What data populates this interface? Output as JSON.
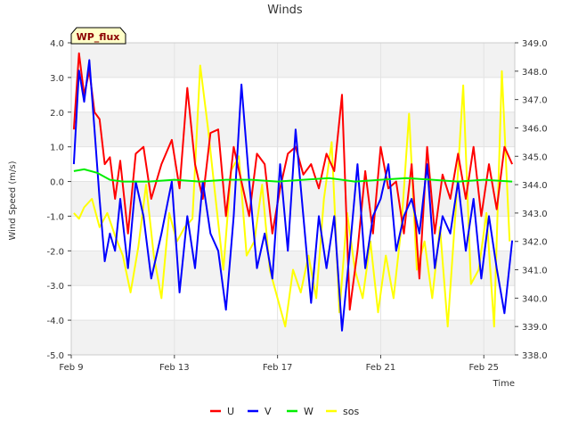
{
  "chart_data": {
    "type": "line",
    "title": "Winds",
    "badge": "WP_flux",
    "xlabel": "Time",
    "ylabel": "Wind Speed (m/s)",
    "ylim": [
      -5.0,
      4.0
    ],
    "y2lim": [
      338.0,
      349.0
    ],
    "xlim_days": [
      9,
      26.2
    ],
    "y_ticks": [
      -5.0,
      -4.0,
      -3.0,
      -2.0,
      -1.0,
      0.0,
      1.0,
      2.0,
      3.0,
      4.0
    ],
    "y_tick_labels": [
      "-5.0",
      "-4.0",
      "-3.0",
      "-2.0",
      "-1.0",
      "0.0",
      "1.0",
      "2.0",
      "3.0",
      "4.0"
    ],
    "y2_ticks": [
      338.0,
      339.0,
      340.0,
      341.0,
      342.0,
      343.0,
      344.0,
      345.0,
      346.0,
      347.0,
      348.0,
      349.0
    ],
    "y2_tick_labels": [
      "338.0",
      "339.0",
      "340.0",
      "341.0",
      "342.0",
      "343.0",
      "344.0",
      "345.0",
      "346.0",
      "347.0",
      "348.0",
      "349.0"
    ],
    "x_ticks": [
      9,
      13,
      17,
      21,
      25
    ],
    "x_tick_labels": [
      "Feb 9",
      "Feb 13",
      "Feb 17",
      "Feb 21",
      "Feb 25"
    ],
    "bands": [
      [
        3.0,
        4.0
      ],
      [
        1.0,
        2.0
      ],
      [
        -1.0,
        0.0
      ],
      [
        -3.0,
        -2.0
      ],
      [
        -5.0,
        -4.0
      ]
    ],
    "legend_position": "bottom-center",
    "series": [
      {
        "name": "U",
        "color": "#ff0000",
        "axis": "left",
        "x": [
          9.1,
          9.3,
          9.5,
          9.7,
          9.9,
          10.1,
          10.3,
          10.5,
          10.7,
          10.9,
          11.2,
          11.5,
          11.8,
          12.1,
          12.5,
          12.9,
          13.2,
          13.5,
          13.8,
          14.1,
          14.4,
          14.7,
          15.0,
          15.3,
          15.6,
          15.9,
          16.2,
          16.5,
          16.8,
          17.1,
          17.4,
          17.7,
          18.0,
          18.3,
          18.6,
          18.9,
          19.2,
          19.5,
          19.8,
          20.1,
          20.4,
          20.7,
          21.0,
          21.3,
          21.6,
          21.9,
          22.2,
          22.5,
          22.8,
          23.1,
          23.4,
          23.7,
          24.0,
          24.3,
          24.6,
          24.9,
          25.2,
          25.5,
          25.8,
          26.1
        ],
        "values": [
          1.5,
          3.7,
          2.5,
          3.2,
          2.0,
          1.8,
          0.5,
          0.7,
          -0.5,
          0.6,
          -1.5,
          0.8,
          1.0,
          -0.5,
          0.5,
          1.2,
          -0.2,
          2.7,
          0.5,
          -0.5,
          1.4,
          1.5,
          -1.0,
          1.0,
          0.0,
          -1.0,
          0.8,
          0.5,
          -1.5,
          -0.2,
          0.8,
          1.0,
          0.2,
          0.5,
          -0.2,
          0.8,
          0.3,
          2.5,
          -3.7,
          -2.0,
          0.3,
          -1.5,
          1.0,
          -0.2,
          0.0,
          -1.5,
          0.5,
          -2.8,
          1.0,
          -1.5,
          0.2,
          -0.5,
          0.8,
          -0.5,
          1.0,
          -1.0,
          0.5,
          -0.8,
          1.0,
          0.5
        ]
      },
      {
        "name": "V",
        "color": "#0000ff",
        "axis": "left",
        "x": [
          9.1,
          9.3,
          9.5,
          9.7,
          9.9,
          10.1,
          10.3,
          10.5,
          10.7,
          10.9,
          11.2,
          11.5,
          11.8,
          12.1,
          12.5,
          12.9,
          13.2,
          13.5,
          13.8,
          14.1,
          14.4,
          14.7,
          15.0,
          15.3,
          15.6,
          15.9,
          16.2,
          16.5,
          16.8,
          17.1,
          17.4,
          17.7,
          18.0,
          18.3,
          18.6,
          18.9,
          19.2,
          19.5,
          19.8,
          20.1,
          20.4,
          20.7,
          21.0,
          21.3,
          21.6,
          21.9,
          22.2,
          22.5,
          22.8,
          23.1,
          23.4,
          23.7,
          24.0,
          24.3,
          24.6,
          24.9,
          25.2,
          25.5,
          25.8,
          26.1
        ],
        "values": [
          0.5,
          3.2,
          2.3,
          3.5,
          1.5,
          -0.5,
          -2.3,
          -1.5,
          -2.0,
          -0.5,
          -2.5,
          0.0,
          -1.0,
          -2.8,
          -1.5,
          0.0,
          -3.2,
          -1.0,
          -2.5,
          0.0,
          -1.5,
          -2.0,
          -3.7,
          -1.0,
          2.8,
          0.0,
          -2.5,
          -1.5,
          -2.8,
          0.5,
          -2.0,
          1.5,
          -1.0,
          -3.5,
          -1.0,
          -2.5,
          -1.0,
          -4.3,
          -2.0,
          0.5,
          -2.5,
          -1.0,
          -0.5,
          0.5,
          -2.0,
          -1.0,
          -0.5,
          -1.5,
          0.5,
          -2.5,
          -1.0,
          -1.5,
          0.0,
          -2.0,
          -0.5,
          -2.8,
          -1.0,
          -2.5,
          -3.8,
          -1.7
        ]
      },
      {
        "name": "W",
        "color": "#00ee00",
        "axis": "left",
        "x": [
          9.1,
          9.5,
          10.0,
          10.5,
          11.0,
          12.0,
          13.0,
          14.0,
          15.0,
          16.0,
          17.0,
          18.0,
          19.0,
          20.0,
          21.0,
          22.0,
          23.0,
          24.0,
          25.0,
          26.1
        ],
        "values": [
          0.3,
          0.35,
          0.25,
          0.05,
          0.0,
          0.0,
          0.05,
          0.0,
          0.05,
          0.05,
          0.0,
          0.05,
          0.1,
          0.0,
          0.05,
          0.1,
          0.05,
          0.0,
          0.05,
          0.0
        ]
      },
      {
        "name": "sos",
        "color": "#ffff00",
        "axis": "right",
        "x": [
          9.1,
          9.3,
          9.5,
          9.8,
          10.1,
          10.4,
          10.7,
          11.0,
          11.3,
          11.6,
          11.9,
          12.2,
          12.5,
          12.8,
          13.1,
          13.4,
          13.7,
          14.0,
          14.3,
          14.6,
          14.9,
          15.2,
          15.5,
          15.8,
          16.1,
          16.4,
          16.7,
          17.0,
          17.3,
          17.6,
          17.9,
          18.2,
          18.5,
          18.8,
          19.1,
          19.4,
          19.7,
          20.0,
          20.3,
          20.6,
          20.9,
          21.2,
          21.5,
          21.8,
          22.1,
          22.4,
          22.7,
          23.0,
          23.3,
          23.6,
          23.9,
          24.2,
          24.5,
          24.8,
          25.1,
          25.4,
          25.7,
          26.0
        ],
        "values": [
          343.0,
          342.8,
          343.2,
          343.5,
          342.5,
          343.0,
          342.2,
          341.5,
          340.2,
          341.8,
          344.0,
          341.5,
          340.0,
          343.0,
          342.0,
          342.5,
          342.8,
          348.2,
          346.0,
          343.5,
          341.0,
          344.5,
          345.0,
          341.5,
          342.0,
          344.0,
          341.0,
          340.0,
          339.0,
          341.0,
          340.2,
          341.5,
          340.0,
          343.5,
          345.5,
          339.5,
          343.0,
          341.0,
          340.0,
          342.0,
          339.5,
          341.5,
          340.0,
          342.5,
          346.5,
          341.0,
          342.0,
          340.0,
          342.5,
          339.0,
          343.0,
          347.5,
          340.5,
          341.0,
          343.0,
          339.0,
          348.0,
          342.0
        ]
      }
    ]
  }
}
